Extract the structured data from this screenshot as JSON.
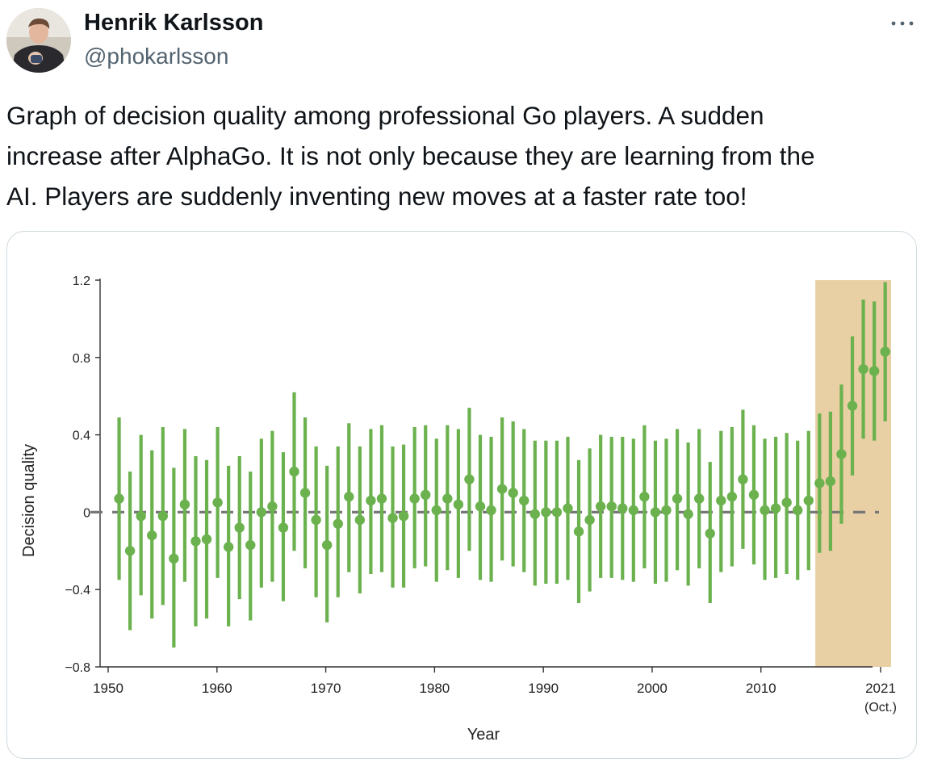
{
  "tweet": {
    "author_name": "Henrik Karlsson",
    "author_handle": "@phokarlsson",
    "more_icon": "ellipsis-icon",
    "text": "Graph of decision quality among professional Go players. A sudden\nincrease after AlphaGo. It is not only because they are learning from the\nAI. Players are suddenly inventing new moves at a faster rate too!"
  },
  "colors": {
    "series": "#6bb24f",
    "highlight": "#e8cfa4",
    "baseline": "#777777",
    "handle": "#536471",
    "border": "#cfd9de"
  },
  "chart_data": {
    "type": "scatter",
    "title": "",
    "xlabel": "Year",
    "ylabel": "Decision quality",
    "xlim": [
      1950,
      2021
    ],
    "ylim": [
      -0.8,
      1.2
    ],
    "x_ticks": [
      {
        "value": 1950,
        "label": "1950"
      },
      {
        "value": 1960,
        "label": "1960"
      },
      {
        "value": 1970,
        "label": "1970"
      },
      {
        "value": 1980,
        "label": "1980"
      },
      {
        "value": 1990,
        "label": "1990"
      },
      {
        "value": 2000,
        "label": "2000"
      },
      {
        "value": 2010,
        "label": "2010"
      },
      {
        "value": 2021,
        "label": "2021",
        "sublabel": "(Oct.)"
      }
    ],
    "y_ticks": [
      {
        "value": 1.2,
        "label": "1.2"
      },
      {
        "value": 0.8,
        "label": "0.8"
      },
      {
        "value": 0.4,
        "label": "0.4"
      },
      {
        "value": 0,
        "label": "0"
      },
      {
        "value": -0.4,
        "label": "−0.4"
      },
      {
        "value": -0.8,
        "label": "−0.8"
      }
    ],
    "reference_line": 0,
    "highlight_range": [
      2015.5,
      2021
    ],
    "grid": false,
    "legend": "none",
    "points": [
      {
        "x": 1951,
        "y": 0.07,
        "low": -0.35,
        "high": 0.49
      },
      {
        "x": 1952,
        "y": -0.2,
        "low": -0.61,
        "high": 0.21
      },
      {
        "x": 1953,
        "y": -0.02,
        "low": -0.43,
        "high": 0.4
      },
      {
        "x": 1954,
        "y": -0.12,
        "low": -0.55,
        "high": 0.32
      },
      {
        "x": 1955,
        "y": -0.02,
        "low": -0.48,
        "high": 0.44
      },
      {
        "x": 1956,
        "y": -0.24,
        "low": -0.7,
        "high": 0.23
      },
      {
        "x": 1957,
        "y": 0.04,
        "low": -0.36,
        "high": 0.43
      },
      {
        "x": 1958,
        "y": -0.15,
        "low": -0.59,
        "high": 0.29
      },
      {
        "x": 1959,
        "y": -0.14,
        "low": -0.55,
        "high": 0.27
      },
      {
        "x": 1960,
        "y": 0.05,
        "low": -0.34,
        "high": 0.44
      },
      {
        "x": 1961,
        "y": -0.18,
        "low": -0.59,
        "high": 0.24
      },
      {
        "x": 1962,
        "y": -0.08,
        "low": -0.45,
        "high": 0.29
      },
      {
        "x": 1963,
        "y": -0.17,
        "low": -0.56,
        "high": 0.21
      },
      {
        "x": 1964,
        "y": 0.0,
        "low": -0.39,
        "high": 0.38
      },
      {
        "x": 1965,
        "y": 0.03,
        "low": -0.36,
        "high": 0.42
      },
      {
        "x": 1966,
        "y": -0.08,
        "low": -0.46,
        "high": 0.31
      },
      {
        "x": 1967,
        "y": 0.21,
        "low": -0.2,
        "high": 0.62
      },
      {
        "x": 1968,
        "y": 0.1,
        "low": -0.29,
        "high": 0.49
      },
      {
        "x": 1969,
        "y": -0.04,
        "low": -0.44,
        "high": 0.34
      },
      {
        "x": 1970,
        "y": -0.17,
        "low": -0.57,
        "high": 0.24
      },
      {
        "x": 1971,
        "y": -0.06,
        "low": -0.44,
        "high": 0.34
      },
      {
        "x": 1972,
        "y": 0.08,
        "low": -0.31,
        "high": 0.46
      },
      {
        "x": 1973,
        "y": -0.04,
        "low": -0.42,
        "high": 0.34
      },
      {
        "x": 1974,
        "y": 0.06,
        "low": -0.32,
        "high": 0.43
      },
      {
        "x": 1975,
        "y": 0.07,
        "low": -0.31,
        "high": 0.45
      },
      {
        "x": 1976,
        "y": -0.03,
        "low": -0.39,
        "high": 0.34
      },
      {
        "x": 1977,
        "y": -0.02,
        "low": -0.39,
        "high": 0.35
      },
      {
        "x": 1978,
        "y": 0.07,
        "low": -0.29,
        "high": 0.44
      },
      {
        "x": 1979,
        "y": 0.09,
        "low": -0.28,
        "high": 0.45
      },
      {
        "x": 1980,
        "y": 0.01,
        "low": -0.36,
        "high": 0.38
      },
      {
        "x": 1981,
        "y": 0.07,
        "low": -0.3,
        "high": 0.45
      },
      {
        "x": 1982,
        "y": 0.04,
        "low": -0.34,
        "high": 0.43
      },
      {
        "x": 1983,
        "y": 0.17,
        "low": -0.2,
        "high": 0.54
      },
      {
        "x": 1984,
        "y": 0.03,
        "low": -0.35,
        "high": 0.4
      },
      {
        "x": 1985,
        "y": 0.01,
        "low": -0.36,
        "high": 0.39
      },
      {
        "x": 1986,
        "y": 0.12,
        "low": -0.25,
        "high": 0.49
      },
      {
        "x": 1987,
        "y": 0.1,
        "low": -0.28,
        "high": 0.47
      },
      {
        "x": 1988,
        "y": 0.06,
        "low": -0.31,
        "high": 0.43
      },
      {
        "x": 1989,
        "y": -0.01,
        "low": -0.38,
        "high": 0.37
      },
      {
        "x": 1990,
        "y": 0.0,
        "low": -0.37,
        "high": 0.37
      },
      {
        "x": 1991,
        "y": 0.0,
        "low": -0.37,
        "high": 0.37
      },
      {
        "x": 1992,
        "y": 0.02,
        "low": -0.35,
        "high": 0.39
      },
      {
        "x": 1993,
        "y": -0.1,
        "low": -0.47,
        "high": 0.27
      },
      {
        "x": 1994,
        "y": -0.04,
        "low": -0.41,
        "high": 0.33
      },
      {
        "x": 1995,
        "y": 0.03,
        "low": -0.34,
        "high": 0.4
      },
      {
        "x": 1996,
        "y": 0.03,
        "low": -0.34,
        "high": 0.39
      },
      {
        "x": 1997,
        "y": 0.02,
        "low": -0.35,
        "high": 0.39
      },
      {
        "x": 1998,
        "y": 0.01,
        "low": -0.36,
        "high": 0.38
      },
      {
        "x": 1999,
        "y": 0.08,
        "low": -0.29,
        "high": 0.45
      },
      {
        "x": 2000,
        "y": 0.0,
        "low": -0.37,
        "high": 0.37
      },
      {
        "x": 2001,
        "y": 0.01,
        "low": -0.36,
        "high": 0.38
      },
      {
        "x": 2002,
        "y": 0.07,
        "low": -0.3,
        "high": 0.43
      },
      {
        "x": 2003,
        "y": -0.01,
        "low": -0.38,
        "high": 0.36
      },
      {
        "x": 2004,
        "y": 0.07,
        "low": -0.29,
        "high": 0.43
      },
      {
        "x": 2005,
        "y": -0.11,
        "low": -0.47,
        "high": 0.26
      },
      {
        "x": 2006,
        "y": 0.06,
        "low": -0.31,
        "high": 0.42
      },
      {
        "x": 2007,
        "y": 0.08,
        "low": -0.28,
        "high": 0.44
      },
      {
        "x": 2008,
        "y": 0.17,
        "low": -0.19,
        "high": 0.53
      },
      {
        "x": 2009,
        "y": 0.09,
        "low": -0.27,
        "high": 0.45
      },
      {
        "x": 2010,
        "y": 0.01,
        "low": -0.35,
        "high": 0.38
      },
      {
        "x": 2011,
        "y": 0.02,
        "low": -0.34,
        "high": 0.39
      },
      {
        "x": 2012,
        "y": 0.05,
        "low": -0.32,
        "high": 0.41
      },
      {
        "x": 2013,
        "y": 0.01,
        "low": -0.35,
        "high": 0.37
      },
      {
        "x": 2014,
        "y": 0.06,
        "low": -0.3,
        "high": 0.42
      },
      {
        "x": 2015,
        "y": 0.15,
        "low": -0.21,
        "high": 0.51
      },
      {
        "x": 2016,
        "y": 0.16,
        "low": -0.2,
        "high": 0.52
      },
      {
        "x": 2017,
        "y": 0.3,
        "low": -0.06,
        "high": 0.66
      },
      {
        "x": 2018,
        "y": 0.55,
        "low": 0.19,
        "high": 0.91
      },
      {
        "x": 2019,
        "y": 0.74,
        "low": 0.38,
        "high": 1.1
      },
      {
        "x": 2020,
        "y": 0.73,
        "low": 0.37,
        "high": 1.09
      },
      {
        "x": 2021,
        "y": 0.83,
        "low": 0.47,
        "high": 1.19
      }
    ]
  }
}
